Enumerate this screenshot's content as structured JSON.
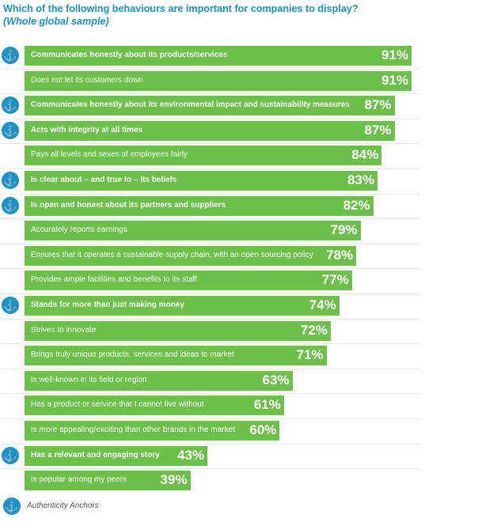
{
  "title": "Which of the following behaviours are important for companies to display?",
  "subtitle": "(Whole global sample)",
  "legend": {
    "label": "Authenticity Anchors",
    "icon": "anchor-icon"
  },
  "colors": {
    "bar": "#6cc04a",
    "accent": "#1a92c8"
  },
  "chart_data": {
    "type": "bar",
    "orientation": "horizontal",
    "value_suffix": "%",
    "categories": [
      "Communicates honestly about its products/services",
      "Does not let its customers down",
      "Communicates honestly about its environmental impact and sustainability measures",
      "Acts with integrity at all times",
      "Pays all levels and sexes of employees fairly",
      "Is clear about – and true to – its beliefs",
      "Is open and honest about its partners and suppliers",
      "Accurately reports earnings",
      "Ensures that it operates a sustainable supply chain, with an open sourcing policy",
      "Provides ample facilities and benefits to its staff",
      "Stands for more than just making money",
      "Strives to innovate",
      "Brings truly unique products, services and ideas to market",
      "Is well-known in its field or region",
      "Has a product or service that I cannot live without",
      "Is more appealing/exciting than other brands in the market",
      "Has a relevant and engaging story",
      "Is popular among my peers"
    ],
    "values": [
      91,
      91,
      87,
      87,
      84,
      83,
      82,
      79,
      78,
      77,
      74,
      72,
      71,
      63,
      61,
      60,
      43,
      39
    ],
    "value_labels": [
      "91%",
      "91%",
      "87%",
      "87%",
      "84%",
      "83%",
      "82%",
      "79%",
      "78%",
      "77%",
      "74%",
      "72%",
      "71%",
      "63%",
      "61%",
      "60%",
      "43%",
      "39%"
    ],
    "authenticity_anchor": [
      true,
      false,
      true,
      true,
      false,
      true,
      true,
      false,
      false,
      false,
      true,
      false,
      false,
      false,
      false,
      false,
      true,
      false
    ],
    "xlim": [
      0,
      91
    ]
  }
}
